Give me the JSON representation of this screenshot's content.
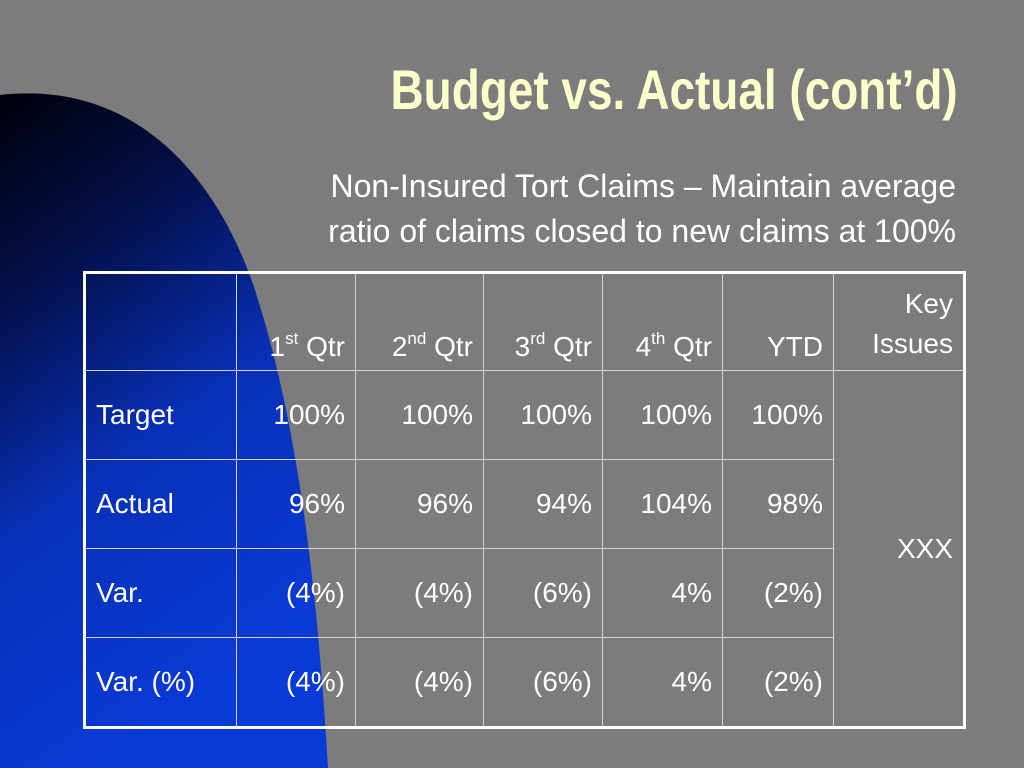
{
  "slide": {
    "title": "Budget vs. Actual (cont’d)",
    "subtitle_line1": "Non-Insured Tort Claims – Maintain average",
    "subtitle_line2": "ratio of claims closed to new claims at 100%"
  },
  "colors": {
    "background": "#7c7c7c",
    "title": "#ffffcc",
    "text": "#ffffff",
    "accent_blue": "#0a3ad6",
    "table_border": "#ffffff"
  },
  "table": {
    "headers": [
      {
        "num": "1",
        "sup": "st",
        "label": "Qtr"
      },
      {
        "num": "2",
        "sup": "nd",
        "label": "Qtr"
      },
      {
        "num": "3",
        "sup": "rd",
        "label": "Qtr"
      },
      {
        "num": "4",
        "sup": "th",
        "label": "Qtr"
      }
    ],
    "ytd_header": "YTD",
    "key_issues_header": "Key Issues",
    "key_issues_value": "XXX",
    "rows": [
      {
        "label": "Target",
        "q1": "100%",
        "q2": "100%",
        "q3": "100%",
        "q4": "100%",
        "ytd": "100%"
      },
      {
        "label": "Actual",
        "q1": "96%",
        "q2": "96%",
        "q3": "94%",
        "q4": "104%",
        "ytd": "98%"
      },
      {
        "label": "Var.",
        "q1": "(4%)",
        "q2": "(4%)",
        "q3": "(6%)",
        "q4": "4%",
        "ytd": "(2%)"
      },
      {
        "label": "Var. (%)",
        "q1": "(4%)",
        "q2": "(4%)",
        "q3": "(6%)",
        "q4": "4%",
        "ytd": "(2%)"
      }
    ]
  }
}
